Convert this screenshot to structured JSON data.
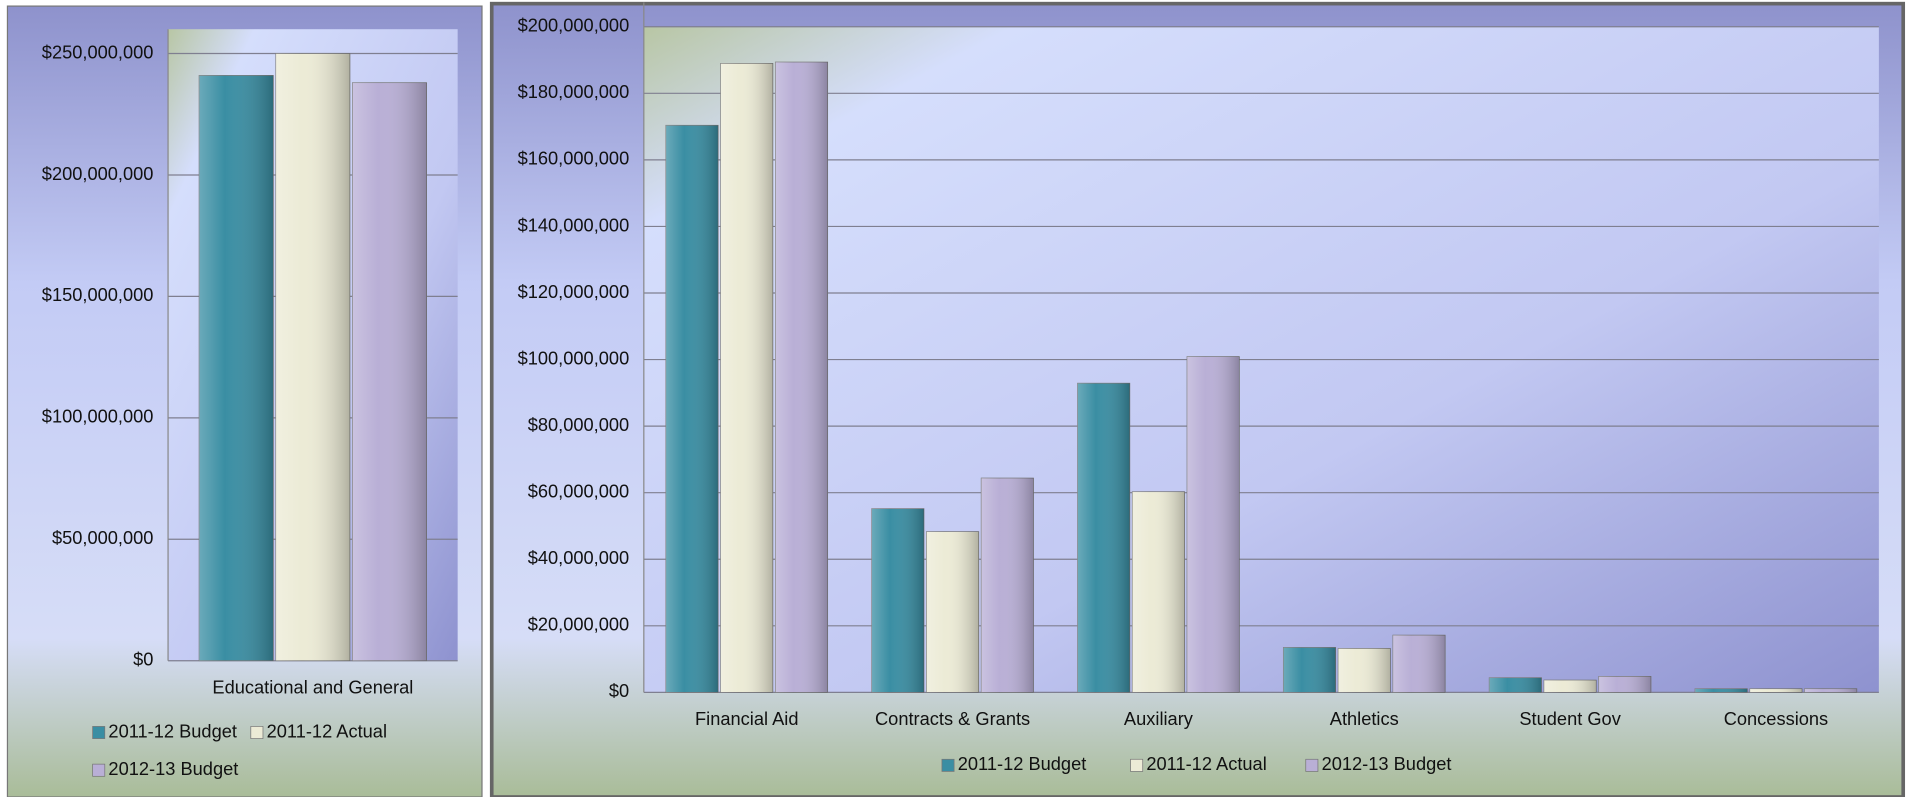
{
  "chart_data": [
    {
      "type": "bar",
      "categories": [
        "Educational and General"
      ],
      "series": [
        {
          "name": "2011-12 Budget",
          "color": "#3a8ea3",
          "values": [
            241000000
          ]
        },
        {
          "name": "2011-12 Actual",
          "color": "#ecebd6",
          "values": [
            250000000
          ]
        },
        {
          "name": "2012-13 Budget",
          "color": "#b9afd6",
          "values": [
            238000000
          ]
        }
      ],
      "ylim": [
        0,
        250000000
      ],
      "yticks": [
        {
          "value": 0,
          "label": "$0"
        },
        {
          "value": 50000000,
          "label": "$50,000,000"
        },
        {
          "value": 100000000,
          "label": "$100,000,000"
        },
        {
          "value": 150000000,
          "label": "$150,000,000"
        },
        {
          "value": 200000000,
          "label": "$200,000,000"
        },
        {
          "value": 250000000,
          "label": "$250,000,000"
        }
      ],
      "grid": true,
      "legend": "bottom"
    },
    {
      "type": "bar",
      "categories": [
        "Financial Aid",
        "Contracts & Grants",
        "Auxiliary",
        "Athletics",
        "Student Gov",
        "Concessions"
      ],
      "series": [
        {
          "name": "2011-12 Budget",
          "color": "#3a8ea3",
          "values": [
            170400000,
            55200000,
            92900000,
            13500000,
            4400000,
            1100000
          ]
        },
        {
          "name": "2011-12 Actual",
          "color": "#ecebd6",
          "values": [
            189000000,
            48300000,
            60300000,
            13200000,
            3700000,
            1100000
          ]
        },
        {
          "name": "2012-13 Budget",
          "color": "#b9afd6",
          "values": [
            189400000,
            64400000,
            100900000,
            17200000,
            4800000,
            1100000
          ]
        }
      ],
      "ylim": [
        0,
        200000000
      ],
      "yticks": [
        {
          "value": 0,
          "label": "$0"
        },
        {
          "value": 20000000,
          "label": "$20,000,000"
        },
        {
          "value": 40000000,
          "label": "$40,000,000"
        },
        {
          "value": 60000000,
          "label": "$60,000,000"
        },
        {
          "value": 80000000,
          "label": "$80,000,000"
        },
        {
          "value": 100000000,
          "label": "$100,000,000"
        },
        {
          "value": 120000000,
          "label": "$120,000,000"
        },
        {
          "value": 140000000,
          "label": "$140,000,000"
        },
        {
          "value": 160000000,
          "label": "$160,000,000"
        },
        {
          "value": 180000000,
          "label": "$180,000,000"
        },
        {
          "value": 200000000,
          "label": "$200,000,000"
        }
      ],
      "grid": true,
      "legend": "bottom"
    }
  ]
}
